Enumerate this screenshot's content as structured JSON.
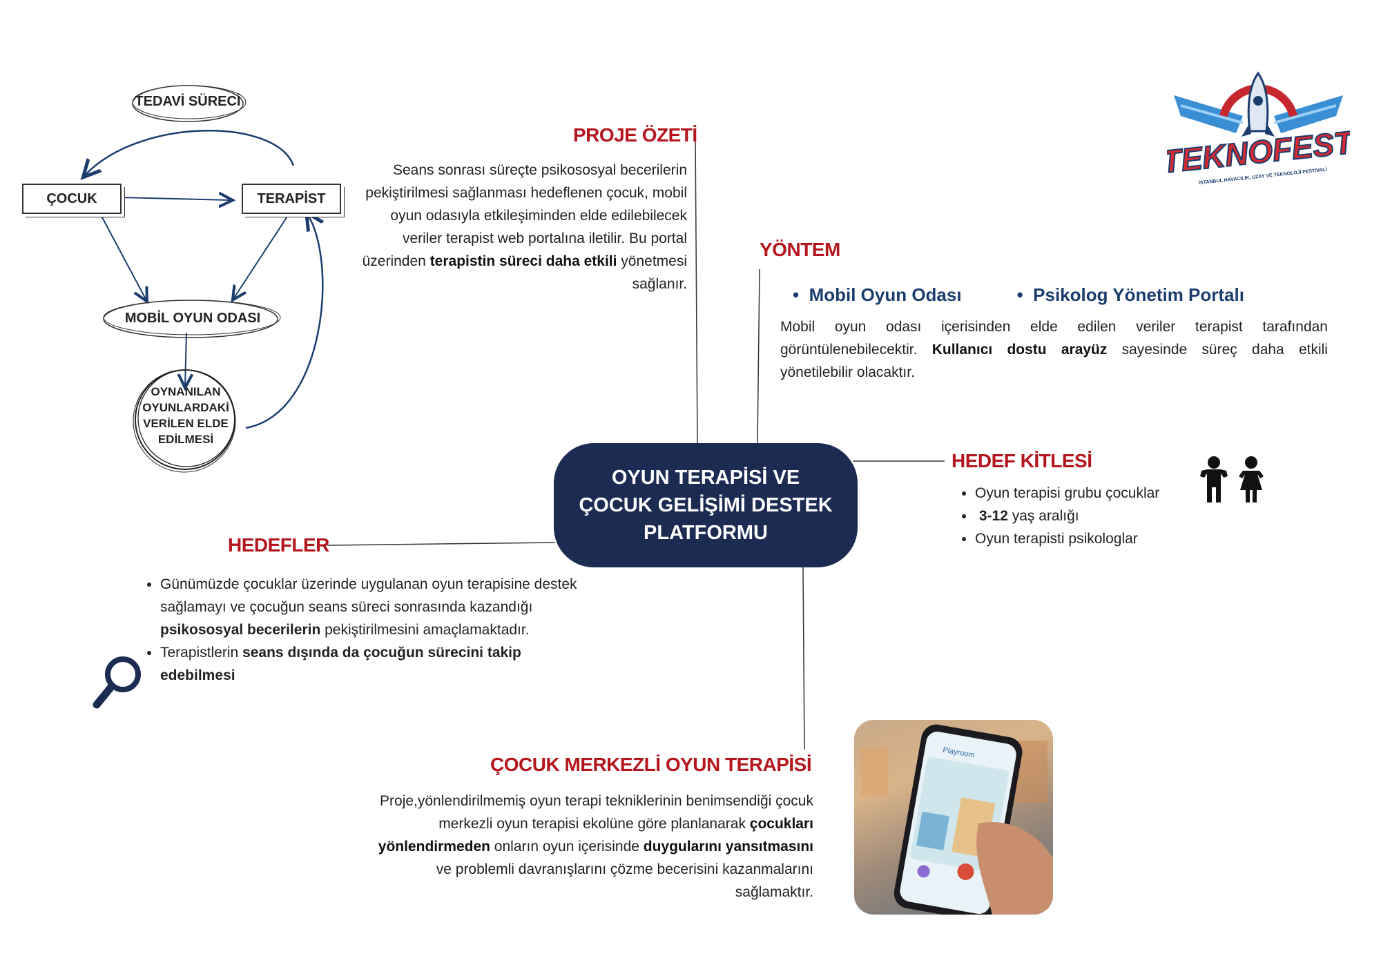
{
  "center": {
    "title": "OYUN TERAPİSİ VE ÇOCUK GELİŞİMİ DESTEK PLATFORMU"
  },
  "proje_ozeti": {
    "title": "PROJE ÖZETİ",
    "text_a": "Seans sonrası süreçte psikososyal becerilerin pekiştirilmesi sağlanması hedeflenen çocuk, mobil oyun odasıyla etkileşiminden elde edilebilecek veriler terapist web portalına iletilir. Bu portal üzerinden ",
    "text_bold": "terapistin süreci daha etkili",
    "text_b": " yönetmesi sağlanır."
  },
  "yontem": {
    "title": "YÖNTEM",
    "bullets": [
      "Mobil Oyun Odası",
      "Psikolog Yönetim Portalı"
    ],
    "text_a": "Mobil oyun odası içerisinden elde edilen veriler terapist tarafından görüntülenebilecektir. ",
    "text_bold": "Kullanıcı dostu arayüz",
    "text_b": " sayesinde süreç daha etkili yönetilebilir olacaktır."
  },
  "hedef_kitlesi": {
    "title": "HEDEF KİTLESİ",
    "item1": "Oyun terapisi grubu çocuklar",
    "item2_bold": "3-12",
    "item2_rest": " yaş aralığı",
    "item3": "Oyun terapisti psikologlar"
  },
  "hedefler": {
    "title": "HEDEFLER",
    "item1_a": "Günümüzde çocuklar üzerinde uygulanan oyun terapisine destek sağlamayı ve çocuğun seans süreci sonrasında kazandığı ",
    "item1_bold": "psikososyal becerilerin",
    "item1_b": " pekiştirilmesini amaçlamaktadır.",
    "item2_a": "Terapistlerin ",
    "item2_bold": "seans dışında da çocuğun sürecini takip edebilmesi"
  },
  "cocuk_merkezli": {
    "title": "ÇOCUK MERKEZLİ OYUN TERAPİSİ",
    "text_a": "Proje,yönlendirilmemiş oyun terapi tekniklerinin benimsendiği çocuk merkezli oyun terapisi ekolüne göre planlanarak ",
    "bold1": "çocukları yönlendirmeden",
    "text_b": " onların oyun içerisinde ",
    "bold2": "duygularını yansıtmasını",
    "text_c": " ve problemli davranışlarını çözme becerisini kazanmalarını sağlamaktır."
  },
  "flow": {
    "tedavi": "TEDAVİ SÜRECİ",
    "cocuk": "ÇOCUK",
    "terapist": "TERAPİST",
    "mobil": "MOBİL OYUN ODASI",
    "oynanilan": "OYNANILAN OYUNLARDAKİ VERİLEN ELDE EDİLMESİ"
  },
  "logo": {
    "name": "TEKNOFEST",
    "subtitle": "İSTANBUL HAVACILIK, UZAY VE TEKNOLOJİ FESTİVALİ"
  },
  "phone": {
    "app_name": "Playroom"
  },
  "colors": {
    "accent_red": "#b3161c",
    "navy": "#1b2b52",
    "blue_text": "#1b3d6e"
  },
  "icons": [
    "magnifier-icon",
    "children-icon",
    "teknofest-logo"
  ]
}
